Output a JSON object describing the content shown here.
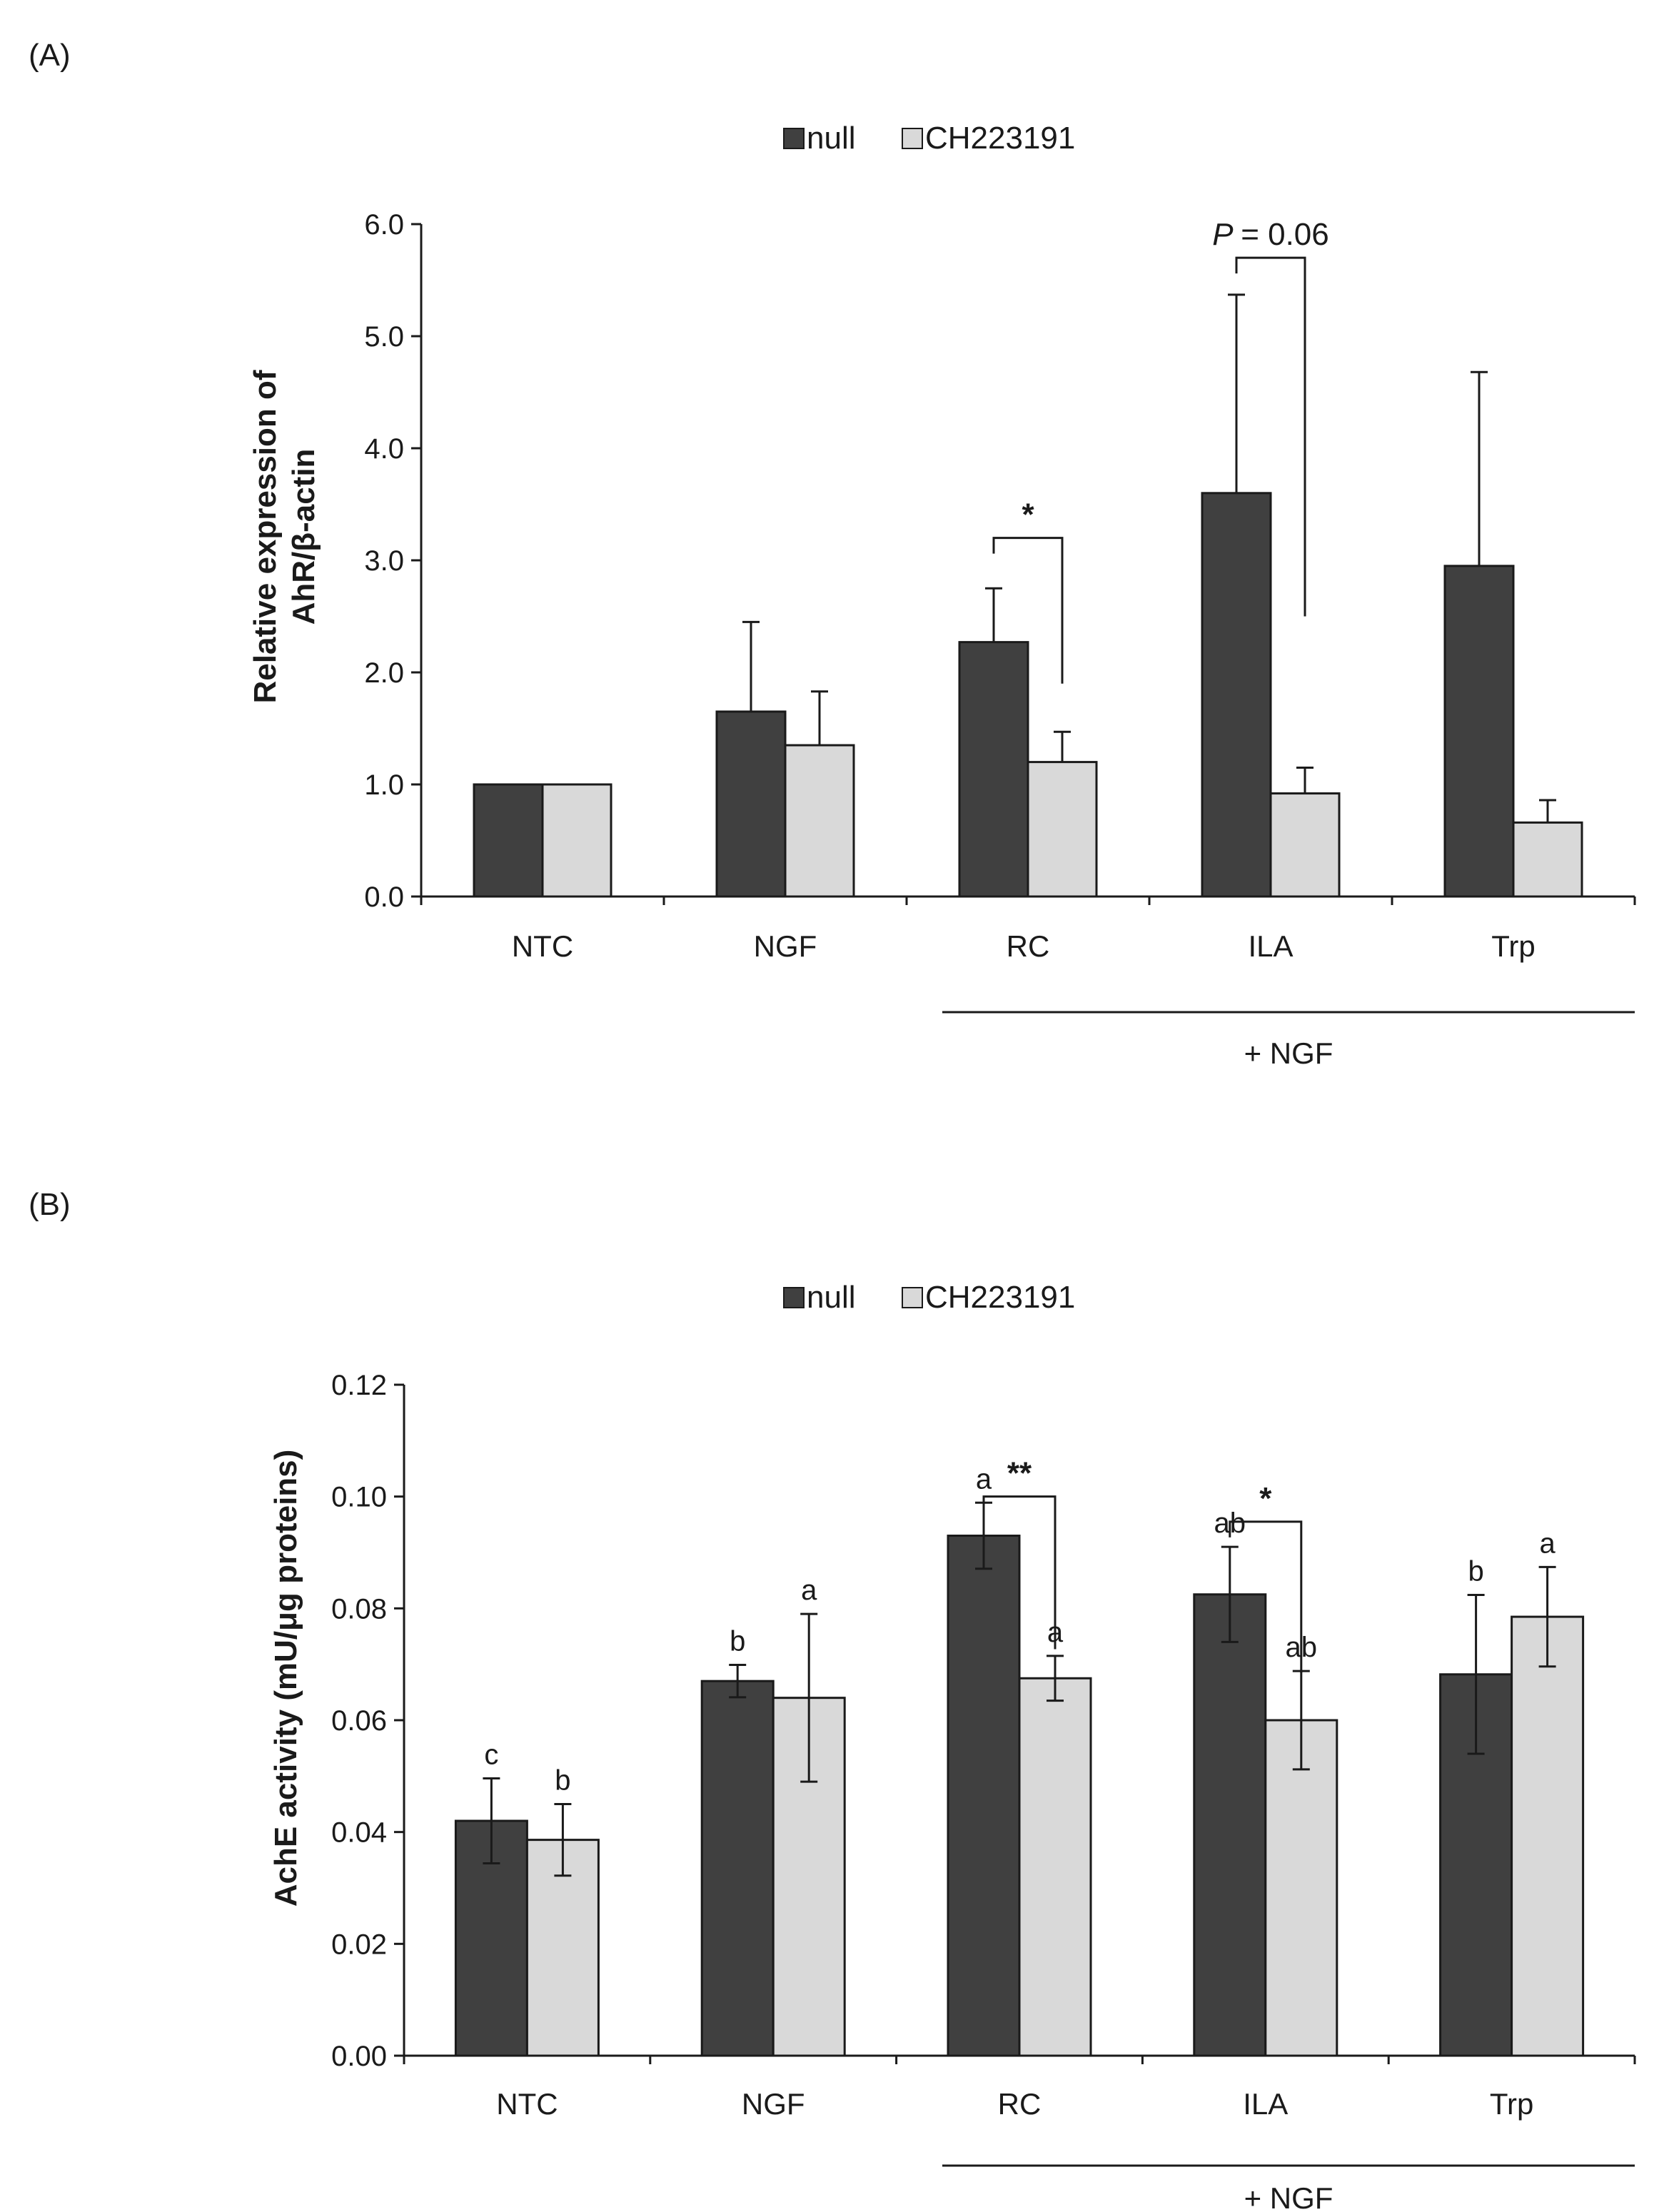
{
  "colors": {
    "null": "#404040",
    "ch": "#d9d9d9",
    "ink": "#1a1a1a"
  },
  "chart_data": [
    {
      "panel_label": "(A)",
      "type": "bar",
      "ylabel_lines": [
        "Relative expression of",
        "AhR/β-actin"
      ],
      "ylim": [
        0,
        6
      ],
      "yticks": [
        "0.0",
        "1.0",
        "2.0",
        "3.0",
        "4.0",
        "5.0",
        "6.0"
      ],
      "categories": [
        "NTC",
        "NGF",
        "RC",
        "ILA",
        "Trp"
      ],
      "group_label": "+ NGF",
      "grid": false,
      "legend_position": "top-center",
      "series": [
        {
          "name": "null",
          "values": [
            1.0,
            1.65,
            2.27,
            3.6,
            2.95
          ],
          "errors": [
            0,
            0.8,
            0.48,
            1.77,
            1.73
          ],
          "letters": []
        },
        {
          "name": "CH223191",
          "values": [
            1.0,
            1.35,
            1.2,
            0.92,
            0.66
          ],
          "errors": [
            0,
            0.48,
            0.27,
            0.23,
            0.2
          ],
          "letters": []
        }
      ],
      "comparisons": [
        {
          "category": "RC",
          "label": "*",
          "italic": false,
          "ytop": 3.2,
          "yend": 1.9
        },
        {
          "category": "ILA",
          "label": "= 0.06",
          "italic_prefix": "P",
          "ytop": 5.7,
          "yend": 2.5
        }
      ]
    },
    {
      "panel_label": "(B)",
      "type": "bar",
      "ylabel_lines": [
        "AchE activity (mU/μg proteins)"
      ],
      "ylim": [
        0,
        0.12
      ],
      "yticks": [
        "0.00",
        "0.02",
        "0.04",
        "0.06",
        "0.08",
        "0.10",
        "0.12"
      ],
      "categories": [
        "NTC",
        "NGF",
        "RC",
        "ILA",
        "Trp"
      ],
      "group_label": "+ NGF",
      "grid": false,
      "legend_position": "top-center",
      "series": [
        {
          "name": "null",
          "values": [
            0.042,
            0.067,
            0.093,
            0.0825,
            0.0682
          ],
          "errors": [
            0.0076,
            0.0029,
            0.0059,
            0.0085,
            0.0142
          ],
          "letters": [
            "c",
            "b",
            "a",
            "ab",
            "b"
          ]
        },
        {
          "name": "CH223191",
          "values": [
            0.0386,
            0.064,
            0.0675,
            0.06,
            0.0785
          ],
          "errors": [
            0.0064,
            0.015,
            0.004,
            0.0088,
            0.0089
          ],
          "letters": [
            "b",
            "a",
            "a",
            "ab",
            "a"
          ]
        }
      ],
      "comparisons": [
        {
          "category": "RC",
          "label": "**",
          "italic": false,
          "ytop": 0.1,
          "yend": 0.0727
        },
        {
          "category": "ILA",
          "label": "*",
          "italic": false,
          "ytop": 0.0955,
          "yend": 0.0685
        }
      ]
    }
  ]
}
